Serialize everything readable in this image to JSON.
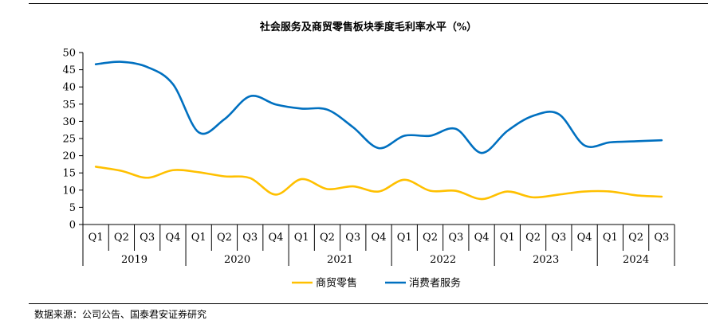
{
  "chart_data": {
    "type": "line",
    "title": "社会服务及商贸零售板块季度毛利率水平（%）",
    "xlabel": "",
    "ylabel": "",
    "ylim": [
      0,
      50
    ],
    "yticks": [
      0,
      5,
      10,
      15,
      20,
      25,
      30,
      35,
      40,
      45,
      50
    ],
    "grid": false,
    "legend_position": "bottom",
    "categories": [
      "Q1",
      "Q2",
      "Q3",
      "Q4",
      "Q1",
      "Q2",
      "Q3",
      "Q4",
      "Q1",
      "Q2",
      "Q3",
      "Q4",
      "Q1",
      "Q2",
      "Q3",
      "Q4",
      "Q1",
      "Q2",
      "Q3",
      "Q4",
      "Q1",
      "Q2",
      "Q3"
    ],
    "year_groups": [
      {
        "label": "2019",
        "count": 4
      },
      {
        "label": "2020",
        "count": 4
      },
      {
        "label": "2021",
        "count": 4
      },
      {
        "label": "2022",
        "count": 4
      },
      {
        "label": "2023",
        "count": 4
      },
      {
        "label": "2024",
        "count": 3
      }
    ],
    "series": [
      {
        "name": "商贸零售",
        "color": "#FFC000",
        "values": [
          16.8,
          15.6,
          13.6,
          15.8,
          15.2,
          14.0,
          13.5,
          8.7,
          13.2,
          10.3,
          11.1,
          9.6,
          13.0,
          9.8,
          9.8,
          7.4,
          9.6,
          7.9,
          8.7,
          9.6,
          9.6,
          8.5,
          8.1
        ]
      },
      {
        "name": "消费者服务",
        "color": "#0070C0",
        "values": [
          46.6,
          47.3,
          45.8,
          40.8,
          26.8,
          30.6,
          37.3,
          34.9,
          33.7,
          33.4,
          28.3,
          22.2,
          25.8,
          25.8,
          27.8,
          20.8,
          27.2,
          31.6,
          32.1,
          23.0,
          23.9,
          24.2,
          24.5
        ]
      }
    ]
  },
  "footer": {
    "source": "数据来源：公司公告、国泰君安证券研究"
  }
}
